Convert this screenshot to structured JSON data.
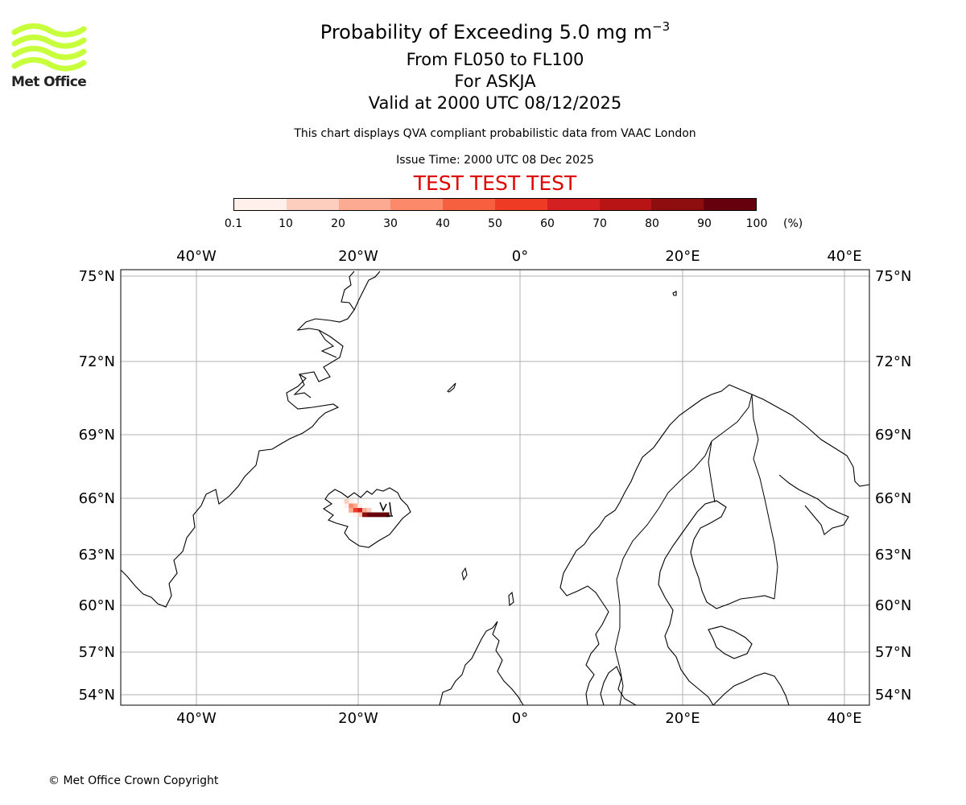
{
  "header": {
    "title": "Probability of Exceeding 5.0 mg m",
    "title_exponent": "−3",
    "level_range": "From FL050 to FL100",
    "volcano": "For ASKJA",
    "valid_time": "Valid at 2000 UTC 08/12/2025",
    "note": "This chart displays QVA compliant probabilistic data from VAAC London",
    "issue_time": "Issue Time: 2000 UTC 08 Dec 2025",
    "test_banner": "TEST TEST TEST"
  },
  "logo": {
    "text": "Met Office",
    "color": "#c8ff3c"
  },
  "colorbar": {
    "ticks": [
      "0.1",
      "10",
      "20",
      "30",
      "40",
      "50",
      "60",
      "70",
      "80",
      "90",
      "100"
    ],
    "unit": "(%)",
    "colors": [
      "#fff0eb",
      "#fdcdbd",
      "#fcab92",
      "#fc8a6a",
      "#f6603f",
      "#ee3b23",
      "#d42020",
      "#b81416",
      "#8e0d0f",
      "#67000d"
    ]
  },
  "map": {
    "lon_labels": [
      "40°W",
      "20°W",
      "0°",
      "20°E",
      "40°E"
    ],
    "lat_labels": [
      "75°N",
      "72°N",
      "69°N",
      "66°N",
      "63°N",
      "60°N",
      "57°N",
      "54°N"
    ],
    "plume": [
      {
        "row": 0,
        "cells": [
          [
            1,
            2
          ],
          [
            2,
            1
          ]
        ]
      },
      {
        "row": 1,
        "cells": [
          [
            1,
            1
          ],
          [
            2,
            4
          ],
          [
            3,
            3
          ],
          [
            4,
            1
          ]
        ]
      },
      {
        "row": 2,
        "cells": [
          [
            2,
            3
          ],
          [
            3,
            6
          ],
          [
            4,
            7
          ],
          [
            5,
            3
          ],
          [
            6,
            2
          ]
        ]
      },
      {
        "row": 3,
        "cells": [
          [
            3,
            1
          ],
          [
            4,
            2
          ],
          [
            5,
            9
          ],
          [
            6,
            10
          ],
          [
            7,
            10
          ],
          [
            8,
            10
          ],
          [
            9,
            10
          ],
          [
            10,
            10
          ]
        ]
      }
    ]
  },
  "footer": {
    "copyright": "© Met Office Crown Copyright"
  }
}
